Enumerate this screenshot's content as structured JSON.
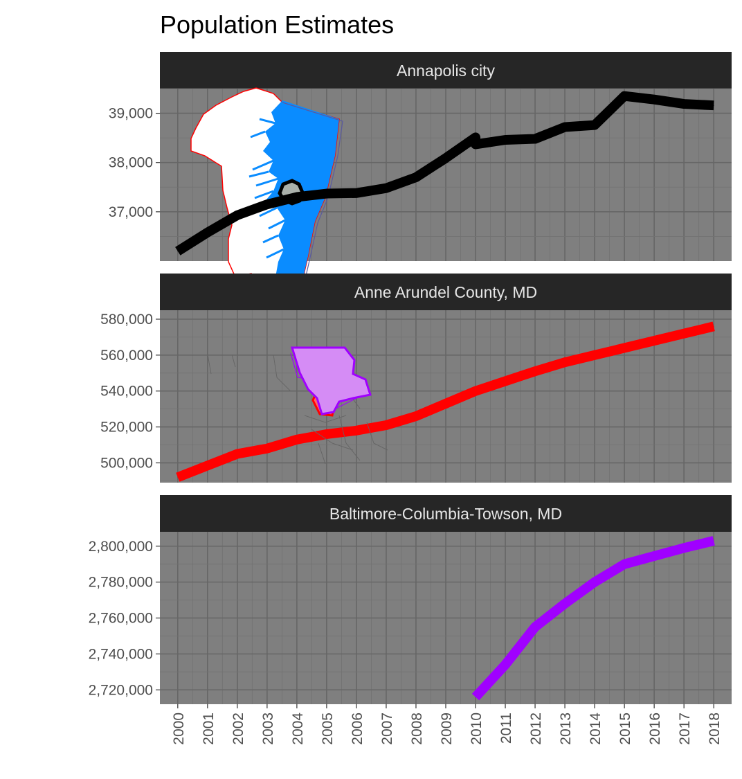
{
  "chart_data": {
    "type": "line",
    "title": "Population Estimates",
    "xlabel": "",
    "ylabel": "",
    "x": [
      2000,
      2001,
      2002,
      2003,
      2004,
      2005,
      2006,
      2007,
      2008,
      2009,
      2010,
      2011,
      2012,
      2013,
      2014,
      2015,
      2016,
      2017,
      2018
    ],
    "x_tick_labels": [
      "2000",
      "2001",
      "2002",
      "2003",
      "2004",
      "2005",
      "2006",
      "2007",
      "2008",
      "2009",
      "2010",
      "2011",
      "2012",
      "2013",
      "2014",
      "2015",
      "2016",
      "2017",
      "2018"
    ],
    "grid": true,
    "facets": [
      {
        "name": "Annapolis city",
        "color": "#000000",
        "ylim": [
          36000,
          39500
        ],
        "yticks": [
          37000,
          38000,
          39000
        ],
        "ytick_labels": [
          "37,000",
          "38,000",
          "39,000"
        ],
        "x": [
          2000,
          2001,
          2002,
          2003,
          2004,
          2005,
          2006,
          2007,
          2008,
          2009,
          2010,
          2010,
          2011,
          2012,
          2013,
          2014,
          2015,
          2016,
          2017,
          2018
        ],
        "values": [
          36200,
          36580,
          36930,
          37150,
          37300,
          37370,
          37380,
          37480,
          37700,
          38090,
          38510,
          38370,
          38460,
          38480,
          38720,
          38760,
          39350,
          39280,
          39190,
          39160
        ],
        "inset_map": "Anne Arundel County outline with Annapolis city highlighted",
        "inset_colors": {
          "land": "#ffffff",
          "water": "#0a8cff",
          "county_border": "#ff0000",
          "city": "#000000"
        }
      },
      {
        "name": "Anne Arundel County, MD",
        "color": "#ff0000",
        "ylim": [
          489000,
          585000
        ],
        "yticks": [
          500000,
          520000,
          540000,
          560000,
          580000
        ],
        "ytick_labels": [
          "500,000",
          "520,000",
          "540,000",
          "560,000",
          "580,000"
        ],
        "x": [
          2000,
          2001,
          2002,
          2003,
          2004,
          2005,
          2006,
          2007,
          2008,
          2009,
          2010,
          2011,
          2012,
          2013,
          2014,
          2015,
          2016,
          2017,
          2018
        ],
        "values": [
          492000,
          498500,
          505000,
          508000,
          513000,
          516000,
          518000,
          521000,
          526000,
          533000,
          540000,
          545500,
          551000,
          556000,
          560000,
          564000,
          568000,
          572000,
          576000
        ],
        "inset_map": "Maryland counties with Anne Arundel County highlighted",
        "inset_colors": {
          "land": "#ffffff",
          "highlight": "#ff6666",
          "highlight_border": "#ff0000",
          "metro_border": "#a000ff"
        }
      },
      {
        "name": "Baltimore-Columbia-Towson, MD",
        "color": "#a000ff",
        "ylim": [
          2712000,
          2808000
        ],
        "yticks": [
          2720000,
          2740000,
          2760000,
          2780000,
          2800000
        ],
        "ytick_labels": [
          "2,720,000",
          "2,740,000",
          "2,760,000",
          "2,780,000",
          "2,800,000"
        ],
        "x": [
          2010,
          2011,
          2012,
          2013,
          2014,
          2015,
          2016,
          2017,
          2018
        ],
        "values": [
          2716000,
          2734000,
          2755000,
          2768000,
          2780000,
          2790000,
          2794500,
          2799000,
          2803000
        ],
        "inset_map": "Maryland counties with Baltimore-Columbia-Towson metro highlighted",
        "inset_colors": {
          "land": "#ffffff",
          "highlight": "#d58cf5",
          "highlight_border": "#a000ff"
        }
      }
    ]
  }
}
